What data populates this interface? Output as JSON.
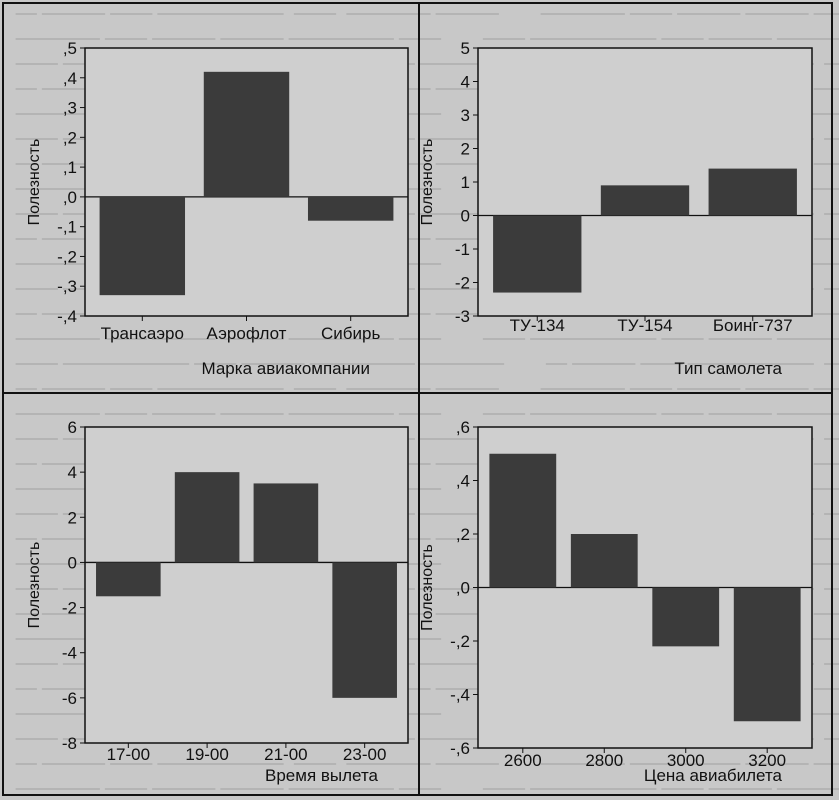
{
  "ylabel": "Полезность",
  "chart_data": [
    {
      "type": "bar",
      "xlabel": "Марка авиакомпании",
      "ylabel": "Полезность",
      "categories": [
        "Трансаэро",
        "Аэрофлот",
        "Сибирь"
      ],
      "values": [
        -0.33,
        0.42,
        -0.08
      ],
      "ylim": [
        -0.4,
        0.5
      ],
      "yticks": [
        0.5,
        0.4,
        0.3,
        0.2,
        0.1,
        0.0,
        -0.1,
        -0.2,
        -0.3,
        -0.4
      ],
      "ytick_labels": [
        ",5",
        ",4",
        ",3",
        ",2",
        ",1",
        ",0",
        "-,1",
        "-,2",
        "-,3",
        "-,4"
      ]
    },
    {
      "type": "bar",
      "xlabel": "Тип самолета",
      "ylabel": "Полезность",
      "categories": [
        "ТУ-134",
        "ТУ-154",
        "Боинг-737"
      ],
      "values": [
        -2.3,
        0.9,
        1.4
      ],
      "ylim": [
        -3,
        5
      ],
      "yticks": [
        5,
        4,
        3,
        2,
        1,
        0,
        -1,
        -2,
        -3
      ],
      "ytick_labels": [
        "5",
        "4",
        "3",
        "2",
        "1",
        "0",
        "-1",
        "-2",
        "-3"
      ]
    },
    {
      "type": "bar",
      "xlabel": "Время вылета",
      "ylabel": "Полезность",
      "categories": [
        "17-00",
        "19-00",
        "21-00",
        "23-00"
      ],
      "values": [
        -1.5,
        4.0,
        3.5,
        -6.0
      ],
      "ylim": [
        -8,
        6
      ],
      "yticks": [
        6,
        4,
        2,
        0,
        -2,
        -4,
        -6,
        -8
      ],
      "ytick_labels": [
        "6",
        "4",
        "2",
        "0",
        "-2",
        "-4",
        "-6",
        "-8"
      ]
    },
    {
      "type": "bar",
      "xlabel": "Цена авиабилета",
      "ylabel": "Полезность",
      "categories": [
        "2600",
        "2800",
        "3000",
        "3200"
      ],
      "values": [
        0.5,
        0.2,
        -0.22,
        -0.5
      ],
      "ylim": [
        -0.6,
        0.6
      ],
      "yticks": [
        0.6,
        0.4,
        0.2,
        0.0,
        -0.2,
        -0.4,
        -0.6
      ],
      "ytick_labels": [
        ",6",
        ",4",
        ",2",
        ",0",
        "-,2",
        "-,4",
        "-,6"
      ]
    }
  ]
}
